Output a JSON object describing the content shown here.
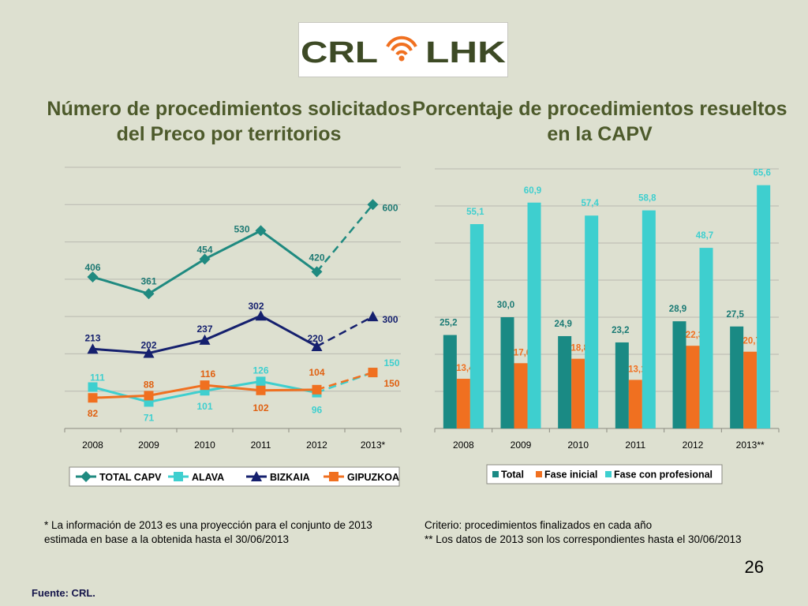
{
  "logo": {
    "left_text": "CRL",
    "right_text": "LHK"
  },
  "left_title": "Número de procedimientos solicitados del Preco por territorios",
  "right_title": "Porcentaje de procedimientos resueltos en la CAPV",
  "chart_data": [
    {
      "type": "line",
      "title": "Número de procedimientos solicitados del Preco por territorios",
      "categories": [
        "2008",
        "2009",
        "2010",
        "2011",
        "2012",
        "2013*"
      ],
      "ylim": [
        0,
        700
      ],
      "grid": true,
      "legend_position": "bottom",
      "projection_from_index": 4,
      "series": [
        {
          "name": "TOTAL CAPV",
          "values": [
            406,
            361,
            454,
            530,
            420,
            600
          ],
          "labels": [
            "406",
            "361",
            "454",
            "530",
            "420",
            "600"
          ],
          "color": "#1f8a80",
          "marker": "diamond"
        },
        {
          "name": "ALAVA",
          "values": [
            111,
            71,
            101,
            126,
            96,
            150
          ],
          "labels": [
            "111",
            "71",
            "101",
            "126",
            "96",
            "150"
          ],
          "color": "#3ecfcf",
          "marker": "square"
        },
        {
          "name": "BIZKAIA",
          "values": [
            213,
            202,
            237,
            302,
            220,
            300
          ],
          "labels": [
            "213",
            "202",
            "237",
            "302",
            "220",
            "300"
          ],
          "color": "#15206e",
          "marker": "triangle"
        },
        {
          "name": "GIPUZKOA",
          "values": [
            82,
            88,
            116,
            102,
            104,
            150
          ],
          "labels": [
            "82",
            "88",
            "116",
            "102",
            "104",
            "150"
          ],
          "color": "#f07020",
          "marker": "square"
        }
      ]
    },
    {
      "type": "bar",
      "title": "Porcentaje de procedimientos resueltos en la CAPV",
      "categories": [
        "2008",
        "2009",
        "2010",
        "2011",
        "2012",
        "2013**"
      ],
      "ylim": [
        0,
        70
      ],
      "grid": true,
      "legend_position": "bottom",
      "series": [
        {
          "name": "Total",
          "values": [
            25.2,
            30.0,
            24.9,
            23.2,
            28.9,
            27.5
          ],
          "labels": [
            "25,2",
            "30,0",
            "24,9",
            "23,2",
            "28,9",
            "27,5"
          ],
          "color": "#1a8a84"
        },
        {
          "name": "Fase inicial",
          "values": [
            13.4,
            17.6,
            18.8,
            13.1,
            22.3,
            20.7
          ],
          "labels": [
            "13,4",
            "17,6",
            "18,8",
            "13,1",
            "22,3",
            "20,7"
          ],
          "color": "#f07020"
        },
        {
          "name": "Fase con profesional",
          "values": [
            55.1,
            60.9,
            57.4,
            58.8,
            48.7,
            65.6
          ],
          "labels": [
            "55,1",
            "60,9",
            "57,4",
            "58,8",
            "48,7",
            "65,6"
          ],
          "color": "#3ecfcf"
        }
      ]
    }
  ],
  "footnote_left": [
    "* La información de 2013 es una proyección para el conjunto de 2013",
    "estimada en base a la obtenida hasta el 30/06/2013"
  ],
  "footnote_right": [
    "Criterio: procedimientos finalizados en cada año",
    "** Los datos de 2013 son los correspondientes hasta el 30/06/2013"
  ],
  "page_number": "26",
  "source": "Fuente: CRL."
}
